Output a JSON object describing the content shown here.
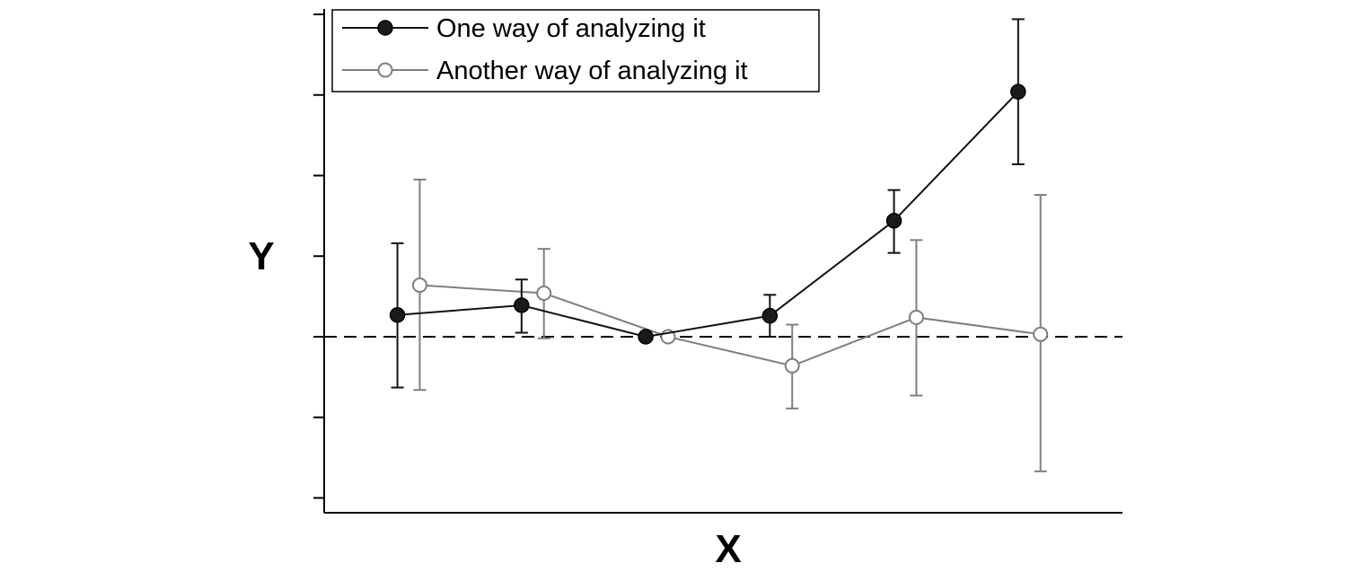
{
  "chart_data": {
    "type": "line",
    "title": "",
    "xlabel": "X",
    "ylabel": "Y",
    "x": [
      1,
      2,
      3,
      4,
      5,
      6
    ],
    "ylim": [
      -2.1,
      4.0
    ],
    "y_ticks": [
      -2,
      -1,
      0,
      1,
      2,
      3,
      4
    ],
    "reference_line": {
      "y": 0,
      "style": "dashed"
    },
    "grid": false,
    "legend_position": "top-left",
    "series": [
      {
        "name": "One way of analyzing it",
        "color": "#111111",
        "marker": "filled-circle",
        "x_offset": -0.09,
        "values": [
          0.27,
          0.39,
          0.0,
          0.26,
          1.44,
          3.04
        ],
        "err_low": [
          -0.63,
          0.05,
          0.0,
          0.0,
          1.04,
          2.14
        ],
        "err_high": [
          1.16,
          0.71,
          0.0,
          0.52,
          1.82,
          3.94
        ]
      },
      {
        "name": "Another way of analyzing it",
        "color": "#7f7f7f",
        "marker": "open-circle",
        "x_offset": 0.09,
        "values": [
          0.64,
          0.54,
          0.0,
          -0.36,
          0.24,
          0.03
        ],
        "err_low": [
          -0.66,
          -0.02,
          0.0,
          -0.89,
          -0.73,
          -1.67
        ],
        "err_high": [
          1.95,
          1.09,
          0.0,
          0.15,
          1.2,
          1.76
        ]
      }
    ]
  }
}
